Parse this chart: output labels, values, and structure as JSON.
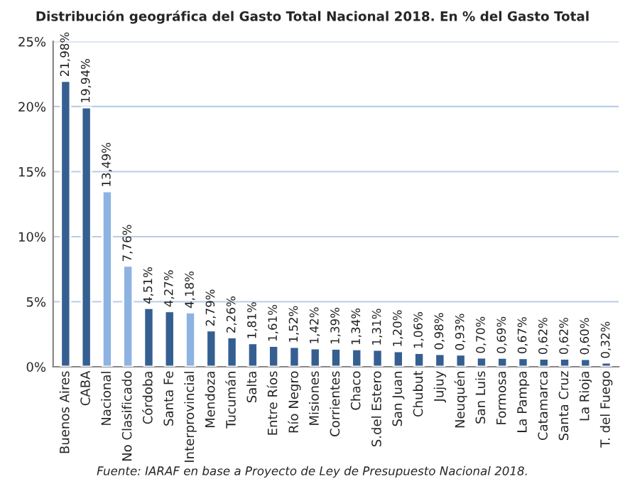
{
  "chart_data": {
    "type": "bar",
    "title": "Distribución geográfica del Gasto Total Nacional 2018. En % del Gasto Total",
    "categories": [
      "Buenos Aires",
      "CABA",
      "Nacional",
      "No Clasificado",
      "Córdoba",
      "Santa Fe",
      "Interprovincial",
      "Mendoza",
      "Tucumán",
      "Salta",
      "Entre Ríos",
      "Río Negro",
      "Misiones",
      "Corrientes",
      "Chaco",
      "S.del Estero",
      "San Juan",
      "Chubut",
      "Jujuy",
      "Neuquén",
      "San Luis",
      "Formosa",
      "La Pampa",
      "Catamarca",
      "Santa Cruz",
      "La Rioja",
      "T. del Fuego"
    ],
    "values": [
      21.98,
      19.94,
      13.49,
      7.76,
      4.51,
      4.27,
      4.18,
      2.79,
      2.26,
      1.81,
      1.61,
      1.52,
      1.42,
      1.39,
      1.34,
      1.31,
      1.2,
      1.06,
      0.98,
      0.93,
      0.7,
      0.69,
      0.67,
      0.62,
      0.62,
      0.6,
      0.32
    ],
    "value_labels": [
      "21,98%",
      "19,94%",
      "13,49%",
      "7,76%",
      "4,51%",
      "4,27%",
      "4,18%",
      "2,79%",
      "2,26%",
      "1,81%",
      "1,61%",
      "1,52%",
      "1,42%",
      "1,39%",
      "1,34%",
      "1,31%",
      "1,20%",
      "1,06%",
      "0,98%",
      "0,93%",
      "0,70%",
      "0,69%",
      "0,67%",
      "0,62%",
      "0,62%",
      "0,60%",
      "0,32%"
    ],
    "colors": [
      "#355f91",
      "#355f91",
      "#8db3e2",
      "#8db3e2",
      "#355f91",
      "#355f91",
      "#8db3e2",
      "#355f91",
      "#355f91",
      "#355f91",
      "#355f91",
      "#355f91",
      "#355f91",
      "#355f91",
      "#355f91",
      "#355f91",
      "#355f91",
      "#355f91",
      "#355f91",
      "#355f91",
      "#355f91",
      "#355f91",
      "#355f91",
      "#355f91",
      "#355f91",
      "#355f91",
      "#355f91"
    ],
    "ylim": [
      0,
      25
    ],
    "yticks": [
      {
        "value": 0,
        "label": "0%"
      },
      {
        "value": 5,
        "label": "5%"
      },
      {
        "value": 10,
        "label": "10%"
      },
      {
        "value": 15,
        "label": "15%"
      },
      {
        "value": 20,
        "label": "20%"
      },
      {
        "value": 25,
        "label": "25%"
      }
    ],
    "grid": "y",
    "annotations": [
      "Fuente: IARAF en base a Proyecto de Ley de Presupuesto Nacional 2018."
    ]
  }
}
